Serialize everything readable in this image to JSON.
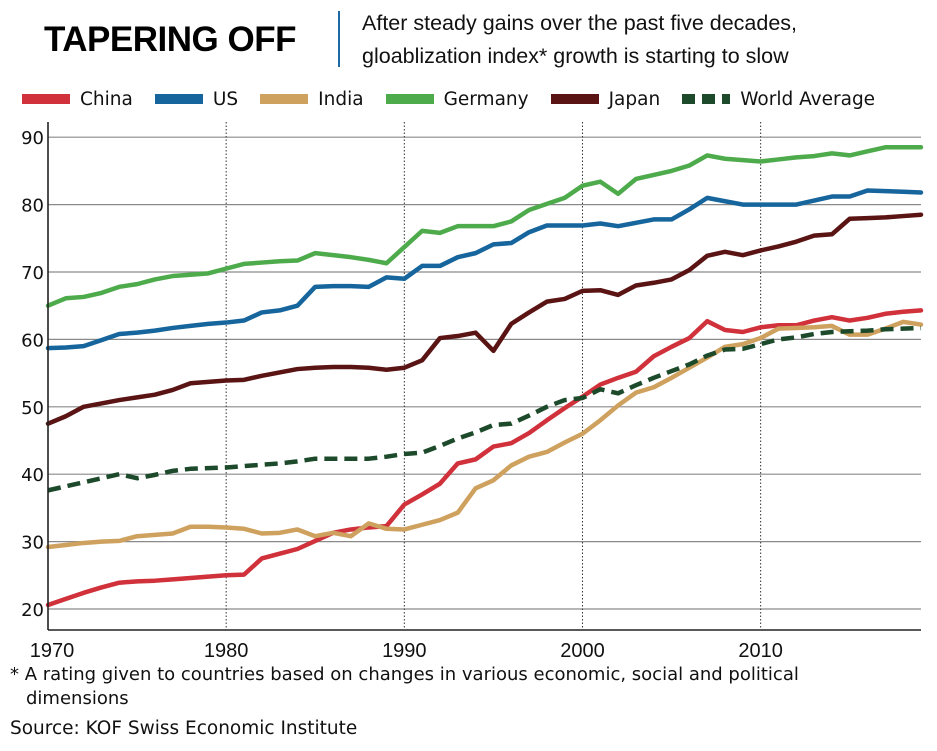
{
  "header": {
    "title": "TAPERING OFF",
    "subtitle_line1": "After steady gains over the past five decades,",
    "subtitle_line2": "gloablization index* growth is starting to slow"
  },
  "legend": {
    "items": [
      {
        "label": "China",
        "color": "#d0313a",
        "dashed": false
      },
      {
        "label": "US",
        "color": "#16659d",
        "dashed": false
      },
      {
        "label": "India",
        "color": "#cfa15e",
        "dashed": false
      },
      {
        "label": "Germany",
        "color": "#4eab4c",
        "dashed": false
      },
      {
        "label": "Japan",
        "color": "#5a1414",
        "dashed": false
      },
      {
        "label": "World Average",
        "color": "#1c4a2a",
        "dashed": true
      }
    ]
  },
  "footnote": {
    "line1": "* A rating given to countries based on changes in various economic, social and political",
    "line2": "dimensions"
  },
  "source": "Source: KOF Swiss Economic Institute",
  "chart_data": {
    "type": "line",
    "title": "TAPERING OFF",
    "subtitle": "After steady gains over the past five decades, gloablization index* growth is starting to slow",
    "xlabel": "",
    "ylabel": "",
    "xlim": [
      1970,
      2019
    ],
    "ylim": [
      20,
      92
    ],
    "x_ticks": [
      1970,
      1980,
      1990,
      2000,
      2010
    ],
    "y_ticks": [
      20,
      30,
      40,
      50,
      60,
      70,
      80,
      90
    ],
    "grid": "horizontal solid gridlines; dotted vertical lines at decades",
    "legend_position": "top",
    "x": [
      1970,
      1971,
      1972,
      1973,
      1974,
      1975,
      1976,
      1977,
      1978,
      1979,
      1980,
      1981,
      1982,
      1983,
      1984,
      1985,
      1986,
      1987,
      1988,
      1989,
      1990,
      1991,
      1992,
      1993,
      1994,
      1995,
      1996,
      1997,
      1998,
      1999,
      2000,
      2001,
      2002,
      2003,
      2004,
      2005,
      2006,
      2007,
      2008,
      2009,
      2010,
      2011,
      2012,
      2013,
      2014,
      2015,
      2016,
      2017,
      2018,
      2019
    ],
    "series": [
      {
        "name": "China",
        "color": "#d0313a",
        "dashed": false,
        "values": [
          20.6,
          21.5,
          22.4,
          23.2,
          23.9,
          24.1,
          24.2,
          24.4,
          24.6,
          24.8,
          25.0,
          25.1,
          27.5,
          28.2,
          28.9,
          30.1,
          31.3,
          31.8,
          32.1,
          32.3,
          35.5,
          37.0,
          38.6,
          41.6,
          42.2,
          44.1,
          44.6,
          46.1,
          48.0,
          49.8,
          51.5,
          53.3,
          54.3,
          55.2,
          57.5,
          58.9,
          60.2,
          62.7,
          61.4,
          61.1,
          61.8,
          62.1,
          62.1,
          62.8,
          63.3,
          62.8,
          63.2,
          63.8,
          64.1,
          64.3
        ]
      },
      {
        "name": "US",
        "color": "#16659d",
        "dashed": false,
        "values": [
          58.7,
          58.8,
          59.0,
          59.9,
          60.8,
          61.0,
          61.3,
          61.7,
          62.0,
          62.3,
          62.5,
          62.8,
          64.0,
          64.3,
          65.0,
          67.8,
          67.9,
          67.9,
          67.8,
          69.2,
          69.0,
          70.9,
          70.9,
          72.2,
          72.8,
          74.1,
          74.3,
          75.9,
          76.9,
          76.9,
          76.9,
          77.2,
          76.8,
          77.3,
          77.8,
          77.8,
          79.3,
          81.0,
          80.5,
          80.0,
          80.0,
          80.0,
          80.0,
          80.6,
          81.2,
          81.2,
          82.1,
          82.0,
          81.9,
          81.8
        ]
      },
      {
        "name": "India",
        "color": "#cfa15e",
        "dashed": false,
        "values": [
          29.2,
          29.5,
          29.8,
          30.0,
          30.1,
          30.8,
          31.0,
          31.2,
          32.2,
          32.2,
          32.1,
          31.9,
          31.2,
          31.3,
          31.8,
          30.8,
          31.3,
          30.8,
          32.7,
          31.9,
          31.8,
          32.5,
          33.2,
          34.3,
          37.9,
          39.1,
          41.3,
          42.6,
          43.3,
          44.7,
          46.0,
          48.0,
          50.2,
          52.1,
          52.9,
          54.3,
          55.8,
          57.3,
          58.9,
          59.3,
          60.2,
          61.6,
          61.7,
          61.8,
          62.0,
          60.7,
          60.7,
          61.6,
          62.6,
          62.2
        ]
      },
      {
        "name": "Germany",
        "color": "#4eab4c",
        "dashed": false,
        "values": [
          65.0,
          66.1,
          66.3,
          66.9,
          67.8,
          68.2,
          68.9,
          69.4,
          69.6,
          69.8,
          70.5,
          71.2,
          71.4,
          71.6,
          71.7,
          72.8,
          72.5,
          72.2,
          71.8,
          71.3,
          73.7,
          76.1,
          75.8,
          76.8,
          76.8,
          76.8,
          77.5,
          79.2,
          80.1,
          81.0,
          82.8,
          83.4,
          81.6,
          83.8,
          84.4,
          85.0,
          85.8,
          87.3,
          86.8,
          86.6,
          86.4,
          86.7,
          87.0,
          87.2,
          87.6,
          87.3,
          87.9,
          88.5,
          88.5,
          88.5
        ]
      },
      {
        "name": "Japan",
        "color": "#5a1414",
        "dashed": false,
        "values": [
          47.5,
          48.6,
          50.0,
          50.5,
          51.0,
          51.4,
          51.8,
          52.5,
          53.5,
          53.7,
          53.9,
          54.0,
          54.6,
          55.1,
          55.6,
          55.8,
          55.9,
          55.9,
          55.8,
          55.5,
          55.8,
          56.9,
          60.2,
          60.5,
          61.0,
          58.3,
          62.3,
          64.0,
          65.6,
          66.0,
          67.2,
          67.3,
          66.6,
          68.0,
          68.4,
          68.9,
          70.3,
          72.4,
          73.0,
          72.5,
          73.2,
          73.8,
          74.5,
          75.4,
          75.6,
          77.9,
          78.0,
          78.1,
          78.3,
          78.5
        ]
      },
      {
        "name": "World Average",
        "color": "#1c4a2a",
        "dashed": true,
        "values": [
          37.6,
          38.2,
          38.8,
          39.4,
          40.0,
          39.4,
          39.9,
          40.5,
          40.8,
          40.9,
          41.0,
          41.2,
          41.4,
          41.6,
          41.9,
          42.3,
          42.3,
          42.3,
          42.3,
          42.6,
          43.0,
          43.2,
          44.2,
          45.3,
          46.2,
          47.3,
          47.5,
          48.7,
          50.0,
          51.0,
          51.3,
          52.6,
          52.0,
          53.2,
          54.3,
          55.3,
          56.3,
          57.6,
          58.5,
          58.6,
          59.3,
          60.0,
          60.3,
          60.8,
          61.1,
          61.2,
          61.3,
          61.5,
          61.6,
          61.7
        ]
      }
    ]
  }
}
